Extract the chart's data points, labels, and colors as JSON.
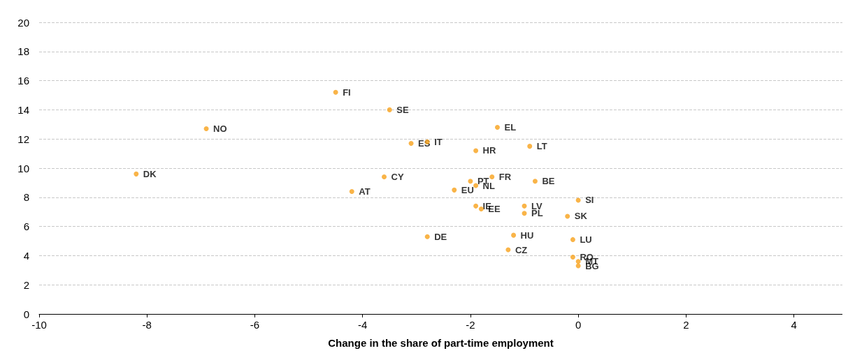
{
  "chart_data": {
    "type": "scatter",
    "xlabel": "Change in the share of part-time employment",
    "x": [
      -4.5,
      -3.5,
      -6.9,
      -1.5,
      -3.1,
      -2.8,
      -1.9,
      -0.9,
      -8.2,
      -3.6,
      -2.0,
      -1.6,
      -0.8,
      -4.2,
      -2.3,
      -1.9,
      0.0,
      -1.9,
      -1.8,
      -1.0,
      -1.0,
      -0.2,
      -2.8,
      -1.2,
      -1.3,
      -0.1,
      -0.1,
      0.0,
      0.0
    ],
    "values": [
      15.2,
      14.0,
      12.7,
      12.8,
      11.7,
      11.8,
      11.2,
      11.5,
      9.6,
      9.4,
      9.1,
      9.4,
      9.1,
      8.4,
      8.5,
      8.8,
      7.8,
      7.4,
      7.2,
      7.4,
      6.9,
      6.7,
      5.3,
      5.4,
      4.4,
      5.1,
      3.9,
      3.6,
      3.3
    ],
    "color": "#f7a11a",
    "marker": "circle",
    "annotations": [
      {
        "text": "FI",
        "x": -4.5,
        "y": 15.2
      },
      {
        "text": "SE",
        "x": -3.5,
        "y": 14.0
      },
      {
        "text": "NO",
        "x": -6.9,
        "y": 12.7
      },
      {
        "text": "EL",
        "x": -1.5,
        "y": 12.8
      },
      {
        "text": "ES",
        "x": -3.1,
        "y": 11.7
      },
      {
        "text": "IT",
        "x": -2.8,
        "y": 11.8
      },
      {
        "text": "HR",
        "x": -1.9,
        "y": 11.2
      },
      {
        "text": "LT",
        "x": -0.9,
        "y": 11.5
      },
      {
        "text": "DK",
        "x": -8.2,
        "y": 9.6
      },
      {
        "text": "CY",
        "x": -3.6,
        "y": 9.4
      },
      {
        "text": "PT",
        "x": -2.0,
        "y": 9.1
      },
      {
        "text": "FR",
        "x": -1.6,
        "y": 9.4
      },
      {
        "text": "BE",
        "x": -0.8,
        "y": 9.1
      },
      {
        "text": "AT",
        "x": -4.2,
        "y": 8.4
      },
      {
        "text": "EU",
        "x": -2.3,
        "y": 8.5
      },
      {
        "text": "NL",
        "x": -1.9,
        "y": 8.8
      },
      {
        "text": "SI",
        "x": 0.0,
        "y": 7.8
      },
      {
        "text": "IE",
        "x": -1.9,
        "y": 7.4
      },
      {
        "text": "EE",
        "x": -1.8,
        "y": 7.2
      },
      {
        "text": "LV",
        "x": -1.0,
        "y": 7.4
      },
      {
        "text": "PL",
        "x": -1.0,
        "y": 6.9
      },
      {
        "text": "SK",
        "x": -0.2,
        "y": 6.7
      },
      {
        "text": "DE",
        "x": -2.8,
        "y": 5.3
      },
      {
        "text": "HU",
        "x": -1.2,
        "y": 5.4
      },
      {
        "text": "CZ",
        "x": -1.3,
        "y": 4.4
      },
      {
        "text": "LU",
        "x": -0.1,
        "y": 5.1
      },
      {
        "text": "RO",
        "x": -0.1,
        "y": 3.9
      },
      {
        "text": "MT",
        "x": 0.0,
        "y": 3.6
      },
      {
        "text": "BG",
        "x": 0.0,
        "y": 3.3
      }
    ],
    "xlim": [
      -10,
      4.9
    ],
    "xticks": [
      -10,
      -8,
      -6,
      -4,
      -2,
      0,
      2,
      4
    ],
    "ylim": [
      0,
      20
    ],
    "yticks": [
      0,
      2,
      4,
      6,
      8,
      10,
      12,
      14,
      16,
      18,
      20
    ],
    "grid": "y"
  }
}
